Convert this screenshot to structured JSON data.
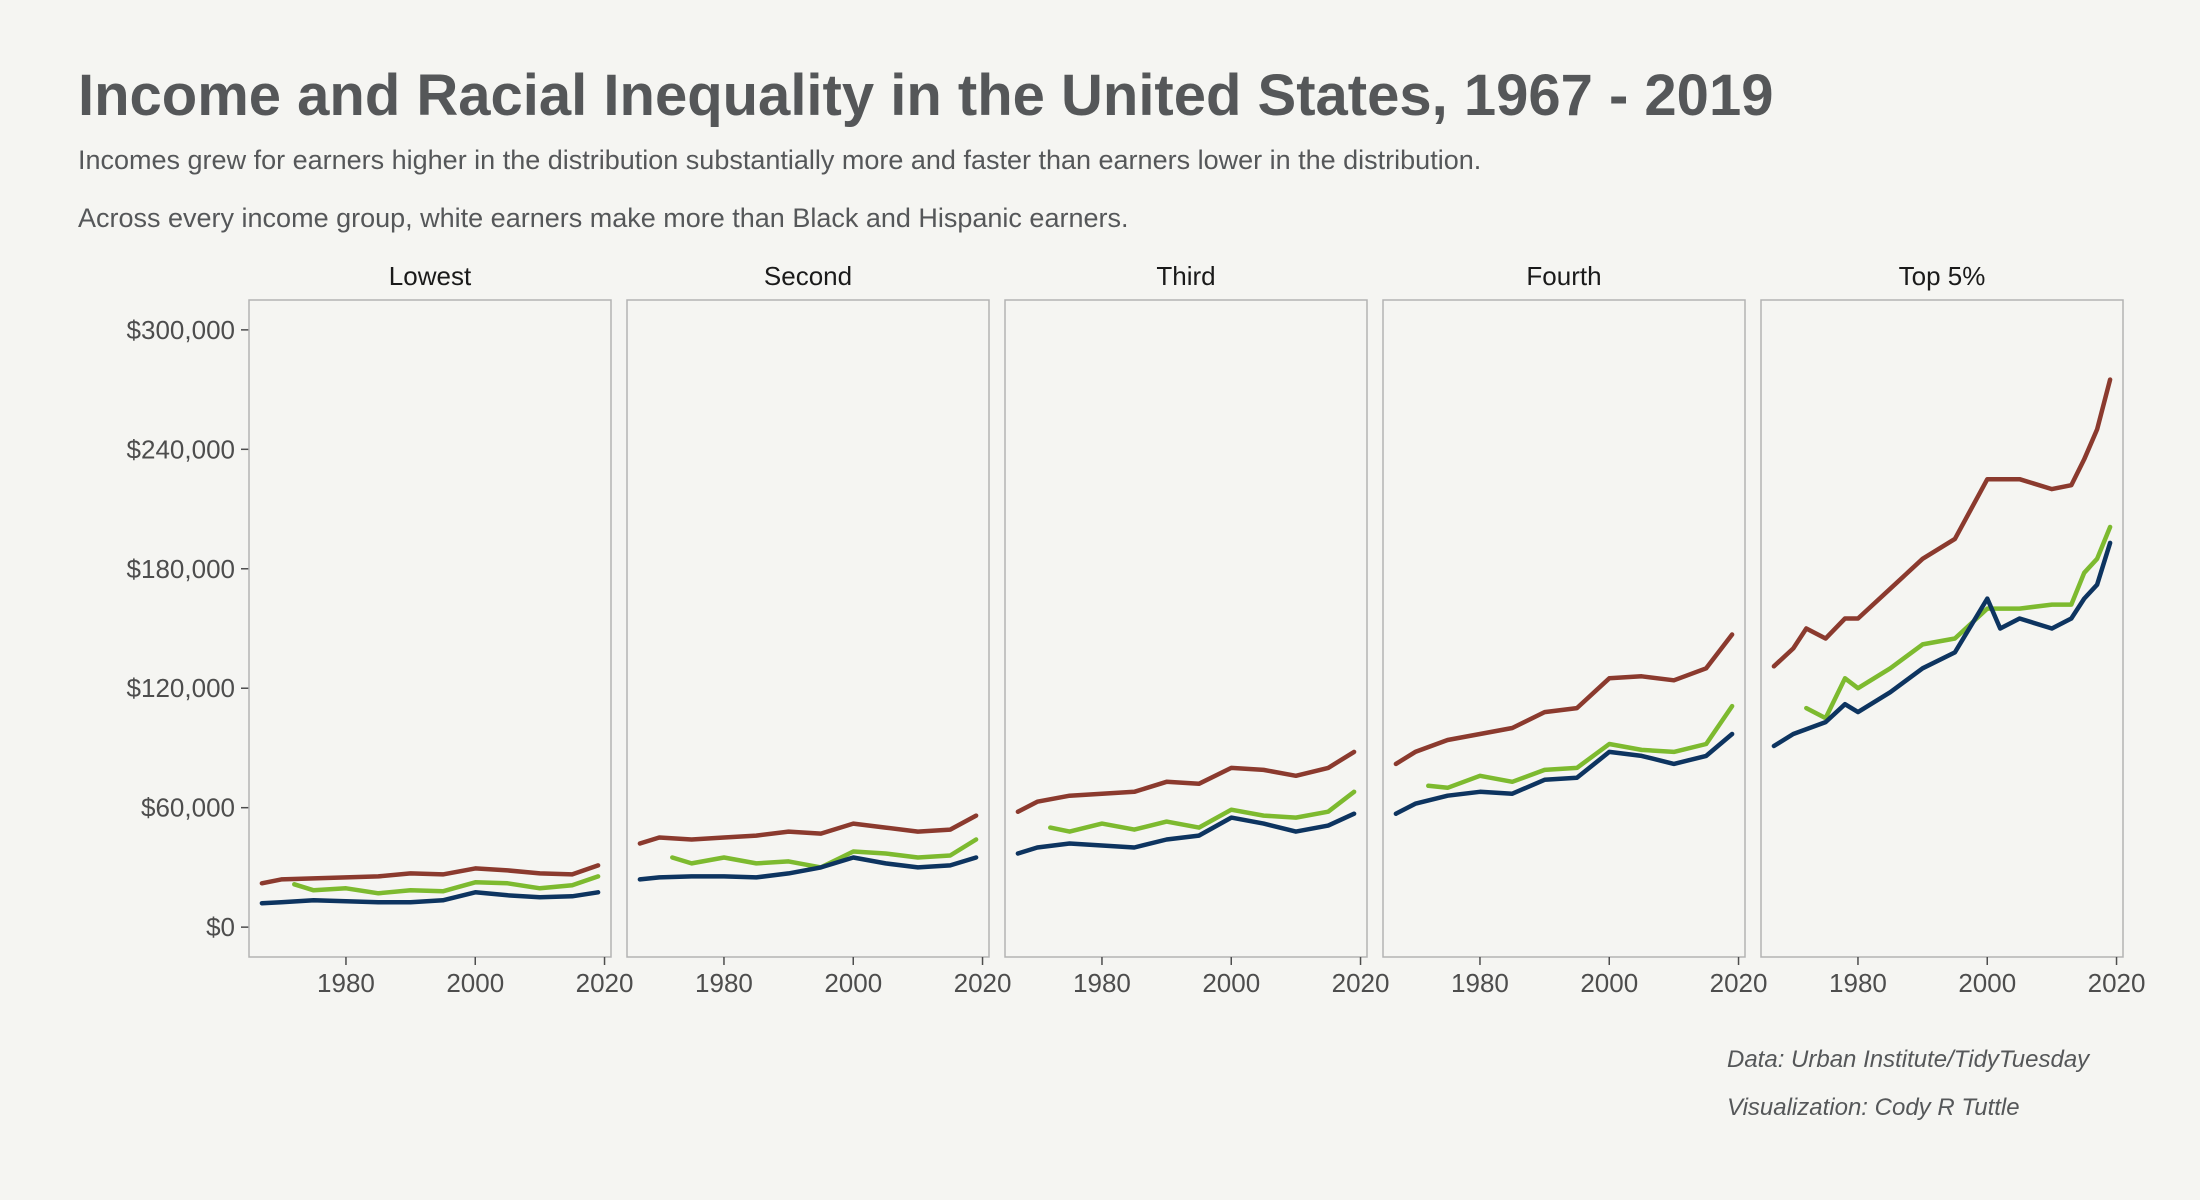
{
  "title": "Income and Racial Inequality in the United States, 1967 - 2019",
  "subtitle_1": "Incomes grew for earners higher in the distribution substantially more and faster than earners lower in the distribution.",
  "subtitle_2": "Across every income group, white earners make more than Black and Hispanic earners.",
  "caption_1": "Data: Urban Institute/TidyTuesday",
  "caption_2": "Visualization: Cody R Tuttle",
  "colors": {
    "background": "#f5f5f2",
    "white_series": "#8b3a2e",
    "hispanic_series": "#7dba2f",
    "black_series": "#0d3460",
    "panel_border": "#b3b3b3",
    "text": "#555759"
  },
  "chart_data": {
    "type": "line",
    "facets": [
      "Lowest",
      "Second",
      "Third",
      "Fourth",
      "Top 5%"
    ],
    "xlim": [
      1965,
      2021
    ],
    "xticks": [
      1980,
      2000,
      2020
    ],
    "xtick_labels": [
      "1980",
      "2000",
      "2020"
    ],
    "ylim": [
      -15000,
      315000
    ],
    "yticks": [
      0,
      60000,
      120000,
      180000,
      240000,
      300000
    ],
    "ytick_labels": [
      "$0",
      "$60,000",
      "$120,000",
      "$180,000",
      "$240,000",
      "$300,000"
    ],
    "legend": "none",
    "grid": false,
    "panels": [
      {
        "facet": "Lowest",
        "series": [
          {
            "color": "#8b3a2e",
            "x": [
              1967,
              1970,
              1975,
              1980,
              1985,
              1990,
              1995,
              2000,
              2005,
              2010,
              2015,
              2019
            ],
            "values": [
              22000,
              24000,
              24500,
              25000,
              25500,
              27000,
              26500,
              29500,
              28500,
              27000,
              26500,
              31000
            ]
          },
          {
            "color": "#7dba2f",
            "x": [
              1972,
              1975,
              1980,
              1985,
              1990,
              1995,
              2000,
              2005,
              2010,
              2015,
              2019
            ],
            "values": [
              21500,
              18500,
              19500,
              17000,
              18500,
              18000,
              22500,
              22000,
              19500,
              21000,
              25500
            ]
          },
          {
            "color": "#0d3460",
            "x": [
              1967,
              1970,
              1975,
              1980,
              1985,
              1990,
              1995,
              2000,
              2005,
              2010,
              2015,
              2019
            ],
            "values": [
              12000,
              12500,
              13500,
              13000,
              12500,
              12500,
              13500,
              17500,
              16000,
              15000,
              15500,
              17500
            ]
          }
        ]
      },
      {
        "facet": "Second",
        "series": [
          {
            "color": "#8b3a2e",
            "x": [
              1967,
              1970,
              1975,
              1980,
              1985,
              1990,
              1995,
              2000,
              2005,
              2010,
              2015,
              2019
            ],
            "values": [
              42000,
              45000,
              44000,
              45000,
              46000,
              48000,
              47000,
              52000,
              50000,
              48000,
              49000,
              56000
            ]
          },
          {
            "color": "#7dba2f",
            "x": [
              1972,
              1975,
              1980,
              1985,
              1990,
              1995,
              2000,
              2005,
              2010,
              2015,
              2019
            ],
            "values": [
              35000,
              32000,
              35000,
              32000,
              33000,
              30000,
              38000,
              37000,
              35000,
              36000,
              44000
            ]
          },
          {
            "color": "#0d3460",
            "x": [
              1967,
              1970,
              1975,
              1980,
              1985,
              1990,
              1995,
              2000,
              2005,
              2010,
              2015,
              2019
            ],
            "values": [
              24000,
              25000,
              25500,
              25500,
              25000,
              27000,
              30000,
              35000,
              32000,
              30000,
              31000,
              35000
            ]
          }
        ]
      },
      {
        "facet": "Third",
        "series": [
          {
            "color": "#8b3a2e",
            "x": [
              1967,
              1970,
              1975,
              1980,
              1985,
              1990,
              1995,
              2000,
              2005,
              2010,
              2015,
              2019
            ],
            "values": [
              58000,
              63000,
              66000,
              67000,
              68000,
              73000,
              72000,
              80000,
              79000,
              76000,
              80000,
              88000
            ]
          },
          {
            "color": "#7dba2f",
            "x": [
              1972,
              1975,
              1980,
              1985,
              1990,
              1995,
              2000,
              2005,
              2010,
              2015,
              2019
            ],
            "values": [
              50000,
              48000,
              52000,
              49000,
              53000,
              50000,
              59000,
              56000,
              55000,
              58000,
              68000
            ]
          },
          {
            "color": "#0d3460",
            "x": [
              1967,
              1970,
              1975,
              1980,
              1985,
              1990,
              1995,
              2000,
              2005,
              2010,
              2015,
              2019
            ],
            "values": [
              37000,
              40000,
              42000,
              41000,
              40000,
              44000,
              46000,
              55000,
              52000,
              48000,
              51000,
              57000
            ]
          }
        ]
      },
      {
        "facet": "Fourth",
        "series": [
          {
            "color": "#8b3a2e",
            "x": [
              1967,
              1970,
              1975,
              1980,
              1985,
              1990,
              1995,
              2000,
              2005,
              2010,
              2015,
              2019
            ],
            "values": [
              82000,
              88000,
              94000,
              97000,
              100000,
              108000,
              110000,
              125000,
              126000,
              124000,
              130000,
              147000
            ]
          },
          {
            "color": "#7dba2f",
            "x": [
              1972,
              1975,
              1980,
              1985,
              1990,
              1995,
              2000,
              2005,
              2010,
              2015,
              2019
            ],
            "values": [
              71000,
              70000,
              76000,
              73000,
              79000,
              80000,
              92000,
              89000,
              88000,
              92000,
              111000
            ]
          },
          {
            "color": "#0d3460",
            "x": [
              1967,
              1970,
              1975,
              1980,
              1985,
              1990,
              1995,
              2000,
              2005,
              2010,
              2015,
              2019
            ],
            "values": [
              57000,
              62000,
              66000,
              68000,
              67000,
              74000,
              75000,
              88000,
              86000,
              82000,
              86000,
              97000
            ]
          }
        ]
      },
      {
        "facet": "Top 5%",
        "series": [
          {
            "color": "#8b3a2e",
            "x": [
              1967,
              1970,
              1972,
              1975,
              1978,
              1980,
              1985,
              1990,
              1995,
              2000,
              2005,
              2010,
              2013,
              2015,
              2017,
              2019
            ],
            "values": [
              131000,
              140000,
              150000,
              145000,
              155000,
              155000,
              170000,
              185000,
              195000,
              225000,
              225000,
              220000,
              222000,
              235000,
              250000,
              275000
            ]
          },
          {
            "color": "#7dba2f",
            "x": [
              1972,
              1975,
              1978,
              1980,
              1985,
              1990,
              1995,
              2000,
              2005,
              2010,
              2013,
              2015,
              2017,
              2019
            ],
            "values": [
              110000,
              105000,
              125000,
              120000,
              130000,
              142000,
              145000,
              160000,
              160000,
              162000,
              162000,
              178000,
              185000,
              201000
            ]
          },
          {
            "color": "#0d3460",
            "x": [
              1967,
              1970,
              1975,
              1978,
              1980,
              1985,
              1990,
              1995,
              2000,
              2002,
              2005,
              2010,
              2013,
              2015,
              2017,
              2019
            ],
            "values": [
              91000,
              97000,
              103000,
              112000,
              108000,
              118000,
              130000,
              138000,
              165000,
              150000,
              155000,
              150000,
              155000,
              165000,
              172000,
              193000
            ]
          }
        ]
      }
    ]
  }
}
